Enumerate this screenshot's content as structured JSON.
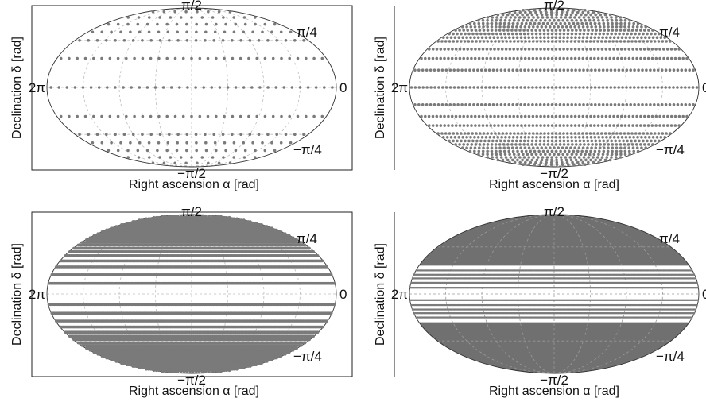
{
  "chart_data": [
    {
      "type": "scatter",
      "projection": "mollweide",
      "xlabel": "Right ascension α [rad]",
      "ylabel": "Declination δ [rad]",
      "grid": true,
      "frame": "box",
      "xlim_rad": [
        0,
        6.2832
      ],
      "ylim_rad": [
        -1.5708,
        1.5708
      ],
      "annotations": {
        "north": "π/2",
        "south": "−π/2",
        "west": "2π",
        "east": "0",
        "upper_right": "π/4",
        "lower_right": "−π/4"
      },
      "series": [
        {
          "rings": [
            {
              "dec": 1.4137,
              "count": 8
            },
            {
              "dec": 1.2566,
              "count": 13
            },
            {
              "dec": 1.0996,
              "count": 18
            },
            {
              "dec": 0.9425,
              "count": 22
            },
            {
              "dec": 0.7854,
              "count": 26
            },
            {
              "dec": 0.4712,
              "count": 33
            },
            {
              "dec": 0.0,
              "count": 36
            },
            {
              "dec": -0.4712,
              "count": 33
            },
            {
              "dec": -0.7854,
              "count": 26
            },
            {
              "dec": -0.9425,
              "count": 22
            },
            {
              "dec": -1.0996,
              "count": 18
            },
            {
              "dec": -1.2566,
              "count": 13
            },
            {
              "dec": -1.4137,
              "count": 8
            }
          ]
        }
      ]
    },
    {
      "type": "scatter",
      "projection": "mollweide",
      "xlabel": "Right ascension α [rad]",
      "ylabel": "Declination δ [rad]",
      "grid": true,
      "frame": "left-only",
      "xlim_rad": [
        0,
        6.2832
      ],
      "ylim_rad": [
        -1.5708,
        1.5708
      ],
      "annotations": {
        "north": "π/2",
        "south": "−π/2",
        "west": "2π",
        "east": "0",
        "upper_right": "π/4",
        "lower_right": "−π/4"
      },
      "series": [
        {
          "rings": [
            {
              "dec": 1.4661,
              "count": 12
            },
            {
              "dec": 1.3963,
              "count": 18
            },
            {
              "dec": 1.3265,
              "count": 24
            },
            {
              "dec": 1.2566,
              "count": 30
            },
            {
              "dec": 1.1868,
              "count": 35
            },
            {
              "dec": 1.117,
              "count": 40
            },
            {
              "dec": 1.0472,
              "count": 45
            },
            {
              "dec": 0.9774,
              "count": 50
            },
            {
              "dec": 0.9076,
              "count": 54
            },
            {
              "dec": 0.8378,
              "count": 58
            },
            {
              "dec": 0.7679,
              "count": 62
            },
            {
              "dec": 0.6283,
              "count": 66
            },
            {
              "dec": 0.4712,
              "count": 70
            },
            {
              "dec": 0.2793,
              "count": 72
            },
            {
              "dec": 0.0,
              "count": 74
            },
            {
              "dec": -0.2793,
              "count": 72
            },
            {
              "dec": -0.4712,
              "count": 70
            },
            {
              "dec": -0.6283,
              "count": 66
            },
            {
              "dec": -0.7679,
              "count": 62
            },
            {
              "dec": -0.8378,
              "count": 58
            },
            {
              "dec": -0.9076,
              "count": 54
            },
            {
              "dec": -0.9774,
              "count": 50
            },
            {
              "dec": -1.0472,
              "count": 45
            },
            {
              "dec": -1.117,
              "count": 40
            },
            {
              "dec": -1.1868,
              "count": 35
            },
            {
              "dec": -1.2566,
              "count": 30
            },
            {
              "dec": -1.3265,
              "count": 24
            },
            {
              "dec": -1.3963,
              "count": 18
            },
            {
              "dec": -1.4661,
              "count": 12
            }
          ]
        }
      ]
    },
    {
      "type": "scatter",
      "projection": "mollweide",
      "xlabel": "Right ascension α [rad]",
      "ylabel": "Declination δ [rad]",
      "grid": true,
      "frame": "box",
      "xlim_rad": [
        0,
        6.2832
      ],
      "ylim_rad": [
        -1.5708,
        1.5708
      ],
      "annotations": {
        "north": "π/2",
        "south": "−π/2",
        "west": "2π",
        "east": "0",
        "upper_right": "π/4",
        "lower_right": "−π/4"
      },
      "series": [
        {
          "rings": [
            {
              "dec": 1.48,
              "count": 20
            },
            {
              "dec": 1.44,
              "count": 30
            },
            {
              "dec": 1.4,
              "count": 40
            },
            {
              "dec": 1.36,
              "count": 50
            },
            {
              "dec": 1.32,
              "count": 60
            },
            {
              "dec": 1.28,
              "count": 70
            },
            {
              "dec": 1.24,
              "count": 80
            },
            {
              "dec": 1.2,
              "count": 90
            },
            {
              "dec": 1.16,
              "count": 100
            },
            {
              "dec": 1.12,
              "count": 110
            },
            {
              "dec": 1.08,
              "count": 118
            },
            {
              "dec": 1.04,
              "count": 126
            },
            {
              "dec": 1.0,
              "count": 134
            },
            {
              "dec": 0.96,
              "count": 142
            },
            {
              "dec": 0.92,
              "count": 150
            },
            {
              "dec": 0.87,
              "count": 158
            },
            {
              "dec": 0.82,
              "count": 166
            },
            {
              "dec": 0.76,
              "count": 174
            },
            {
              "dec": 0.7,
              "count": 180
            },
            {
              "dec": 0.63,
              "count": 186
            },
            {
              "dec": 0.54,
              "count": 192
            },
            {
              "dec": 0.44,
              "count": 196
            },
            {
              "dec": 0.31,
              "count": 200
            },
            {
              "dec": 0.17,
              "count": 202
            },
            {
              "dec": -0.17,
              "count": 202
            },
            {
              "dec": -0.31,
              "count": 200
            },
            {
              "dec": -0.44,
              "count": 196
            },
            {
              "dec": -0.54,
              "count": 192
            },
            {
              "dec": -0.63,
              "count": 186
            },
            {
              "dec": -0.7,
              "count": 180
            },
            {
              "dec": -0.76,
              "count": 174
            },
            {
              "dec": -0.82,
              "count": 166
            },
            {
              "dec": -0.87,
              "count": 158
            },
            {
              "dec": -0.92,
              "count": 150
            },
            {
              "dec": -0.96,
              "count": 142
            },
            {
              "dec": -1.0,
              "count": 134
            },
            {
              "dec": -1.04,
              "count": 126
            },
            {
              "dec": -1.08,
              "count": 118
            },
            {
              "dec": -1.12,
              "count": 110
            },
            {
              "dec": -1.16,
              "count": 100
            },
            {
              "dec": -1.2,
              "count": 90
            },
            {
              "dec": -1.24,
              "count": 80
            },
            {
              "dec": -1.28,
              "count": 70
            },
            {
              "dec": -1.32,
              "count": 60
            },
            {
              "dec": -1.36,
              "count": 50
            },
            {
              "dec": -1.4,
              "count": 40
            },
            {
              "dec": -1.44,
              "count": 30
            },
            {
              "dec": -1.48,
              "count": 20
            }
          ]
        }
      ]
    },
    {
      "type": "scatter",
      "projection": "mollweide",
      "xlabel": "Right ascension α [rad]",
      "ylabel": "Declination δ [rad]",
      "grid": true,
      "frame": "left-only",
      "xlim_rad": [
        0,
        6.2832
      ],
      "ylim_rad": [
        -1.5708,
        1.5708
      ],
      "annotations": {
        "north": "π/2",
        "south": "−π/2",
        "west": "2π",
        "east": "0",
        "upper_right": "π/4",
        "lower_right": "−π/4"
      },
      "filled_caps_dec_rad": [
        0.46,
        -0.46
      ],
      "series": [
        {
          "rings": [
            {
              "dec": 0.38,
              "count": 300
            },
            {
              "dec": 0.31,
              "count": 300
            },
            {
              "dec": 0.25,
              "count": 300
            },
            {
              "dec": 0.18,
              "count": 300
            },
            {
              "dec": 0.1,
              "count": 300
            },
            {
              "dec": -0.1,
              "count": 300
            },
            {
              "dec": -0.18,
              "count": 300
            },
            {
              "dec": -0.25,
              "count": 300
            },
            {
              "dec": -0.31,
              "count": 300
            },
            {
              "dec": -0.38,
              "count": 300
            }
          ]
        }
      ]
    }
  ]
}
